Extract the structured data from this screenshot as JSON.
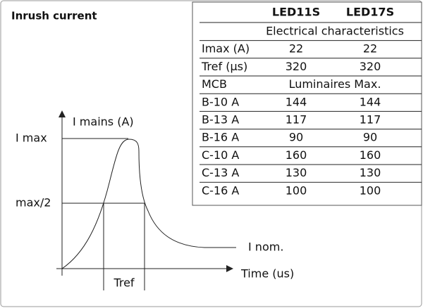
{
  "title": "Inrush current",
  "diagram": {
    "y_axis_label": "I mains (A)",
    "x_axis_label": "Time (us)",
    "level_max": "I max",
    "level_half": "max/2",
    "tref": "Tref",
    "inom": "I nom."
  },
  "table": {
    "columns": [
      "LED11S",
      "LED17S"
    ],
    "section_1": "Electrical characteristics",
    "rows_1": [
      [
        "Imax (A)",
        22,
        22
      ],
      [
        "Tref (µs)",
        320,
        320
      ]
    ],
    "section_2_label": "MCB",
    "section_2": "Luminaires Max.",
    "rows_2": [
      [
        "B-10 A",
        144,
        144
      ],
      [
        "B-13 A",
        117,
        117
      ],
      [
        "B-16 A",
        90,
        90
      ],
      [
        "C-10 A",
        160,
        160
      ],
      [
        "C-13 A",
        130,
        130
      ],
      [
        "C-16 A",
        100,
        100
      ]
    ]
  }
}
